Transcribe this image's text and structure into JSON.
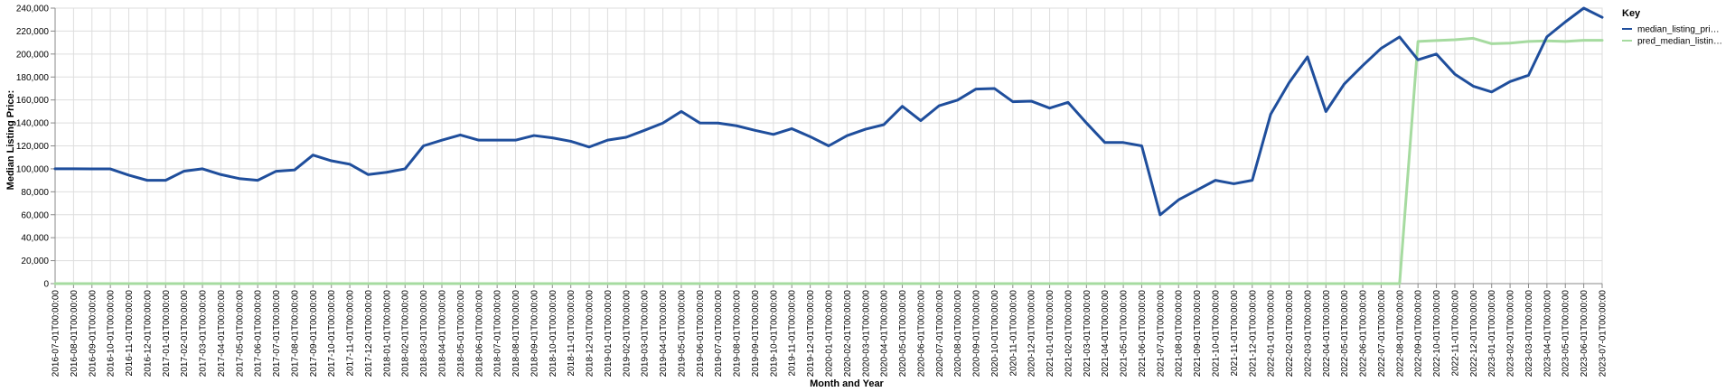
{
  "chart_data": {
    "type": "line",
    "xlabel": "Month and Year",
    "ylabel": "Median Listing Price:",
    "ylim": [
      0,
      240000
    ],
    "yticks": [
      "0",
      "20,000",
      "40,000",
      "60,000",
      "80,000",
      "100,000",
      "120,000",
      "140,000",
      "160,000",
      "180,000",
      "200,000",
      "220,000",
      "240,000"
    ],
    "grid": true,
    "legend": {
      "title": "Key",
      "placement": "right"
    },
    "x": [
      "2016-07-01T00:00:00",
      "2016-08-01T00:00:00",
      "2016-09-01T00:00:00",
      "2016-10-01T00:00:00",
      "2016-11-01T00:00:00",
      "2016-12-01T00:00:00",
      "2017-01-01T00:00:00",
      "2017-02-01T00:00:00",
      "2017-03-01T00:00:00",
      "2017-04-01T00:00:00",
      "2017-05-01T00:00:00",
      "2017-06-01T00:00:00",
      "2017-07-01T00:00:00",
      "2017-08-01T00:00:00",
      "2017-09-01T00:00:00",
      "2017-10-01T00:00:00",
      "2017-11-01T00:00:00",
      "2017-12-01T00:00:00",
      "2018-01-01T00:00:00",
      "2018-02-01T00:00:00",
      "2018-03-01T00:00:00",
      "2018-04-01T00:00:00",
      "2018-05-01T00:00:00",
      "2018-06-01T00:00:00",
      "2018-07-01T00:00:00",
      "2018-08-01T00:00:00",
      "2018-09-01T00:00:00",
      "2018-10-01T00:00:00",
      "2018-11-01T00:00:00",
      "2018-12-01T00:00:00",
      "2019-01-01T00:00:00",
      "2019-02-01T00:00:00",
      "2019-03-01T00:00:00",
      "2019-04-01T00:00:00",
      "2019-05-01T00:00:00",
      "2019-06-01T00:00:00",
      "2019-07-01T00:00:00",
      "2019-08-01T00:00:00",
      "2019-09-01T00:00:00",
      "2019-10-01T00:00:00",
      "2019-11-01T00:00:00",
      "2019-12-01T00:00:00",
      "2020-01-01T00:00:00",
      "2020-02-01T00:00:00",
      "2020-03-01T00:00:00",
      "2020-04-01T00:00:00",
      "2020-05-01T00:00:00",
      "2020-06-01T00:00:00",
      "2020-07-01T00:00:00",
      "2020-08-01T00:00:00",
      "2020-09-01T00:00:00",
      "2020-10-01T00:00:00",
      "2020-11-01T00:00:00",
      "2020-12-01T00:00:00",
      "2021-01-01T00:00:00",
      "2021-02-01T00:00:00",
      "2021-03-01T00:00:00",
      "2021-04-01T00:00:00",
      "2021-05-01T00:00:00",
      "2021-06-01T00:00:00",
      "2021-07-01T00:00:00",
      "2021-08-01T00:00:00",
      "2021-09-01T00:00:00",
      "2021-10-01T00:00:00",
      "2021-11-01T00:00:00",
      "2021-12-01T00:00:00",
      "2022-01-01T00:00:00",
      "2022-02-01T00:00:00",
      "2022-03-01T00:00:00",
      "2022-04-01T00:00:00",
      "2022-05-01T00:00:00",
      "2022-06-01T00:00:00",
      "2022-07-01T00:00:00",
      "2022-08-01T00:00:00",
      "2022-09-01T00:00:00",
      "2022-10-01T00:00:00",
      "2022-11-01T00:00:00",
      "2022-12-01T00:00:00",
      "2023-01-01T00:00:00",
      "2023-02-01T00:00:00",
      "2023-03-01T00:00:00",
      "2023-04-01T00:00:00",
      "2023-05-01T00:00:00",
      "2023-06-01T00:00:00",
      "2023-07-01T00:00:00"
    ],
    "series": [
      {
        "name": "median_listing_pri…",
        "color": "#1f4e9c",
        "values": [
          100000,
          100000,
          99900,
          99900,
          94500,
          90000,
          90000,
          98000,
          100000,
          95000,
          91500,
          90000,
          97900,
          99000,
          112000,
          107000,
          104000,
          95000,
          97000,
          100000,
          120000,
          125000,
          129500,
          125000,
          125000,
          125000,
          129000,
          127000,
          124000,
          119000,
          125000,
          127500,
          133500,
          139900,
          150000,
          140000,
          139900,
          137500,
          133500,
          130000,
          135000,
          128000,
          120000,
          128900,
          134500,
          138500,
          154500,
          142000,
          155000,
          159900,
          169500,
          170000,
          158500,
          159000,
          152900,
          157900,
          139900,
          122900,
          122900,
          120000,
          59900,
          73000,
          81500,
          90000,
          87000,
          90000,
          147500,
          175000,
          197500,
          149900,
          174000,
          190000,
          205000,
          214900,
          195000,
          200000,
          182500,
          172000,
          167000,
          176000,
          181500,
          215000,
          228000,
          240000,
          232000
        ]
      },
      {
        "name": "pred_median_listin…",
        "color": "#a6dba0",
        "values": [
          0,
          0,
          0,
          0,
          0,
          0,
          0,
          0,
          0,
          0,
          0,
          0,
          0,
          0,
          0,
          0,
          0,
          0,
          0,
          0,
          0,
          0,
          0,
          0,
          0,
          0,
          0,
          0,
          0,
          0,
          0,
          0,
          0,
          0,
          0,
          0,
          0,
          0,
          0,
          0,
          0,
          0,
          0,
          0,
          0,
          0,
          0,
          0,
          0,
          0,
          0,
          0,
          0,
          0,
          0,
          0,
          0,
          0,
          0,
          0,
          0,
          0,
          0,
          0,
          0,
          0,
          0,
          0,
          0,
          0,
          0,
          0,
          0,
          0,
          211000,
          211800,
          212500,
          213700,
          209000,
          209500,
          211000,
          211500,
          211000,
          212000,
          212000
        ]
      }
    ]
  }
}
